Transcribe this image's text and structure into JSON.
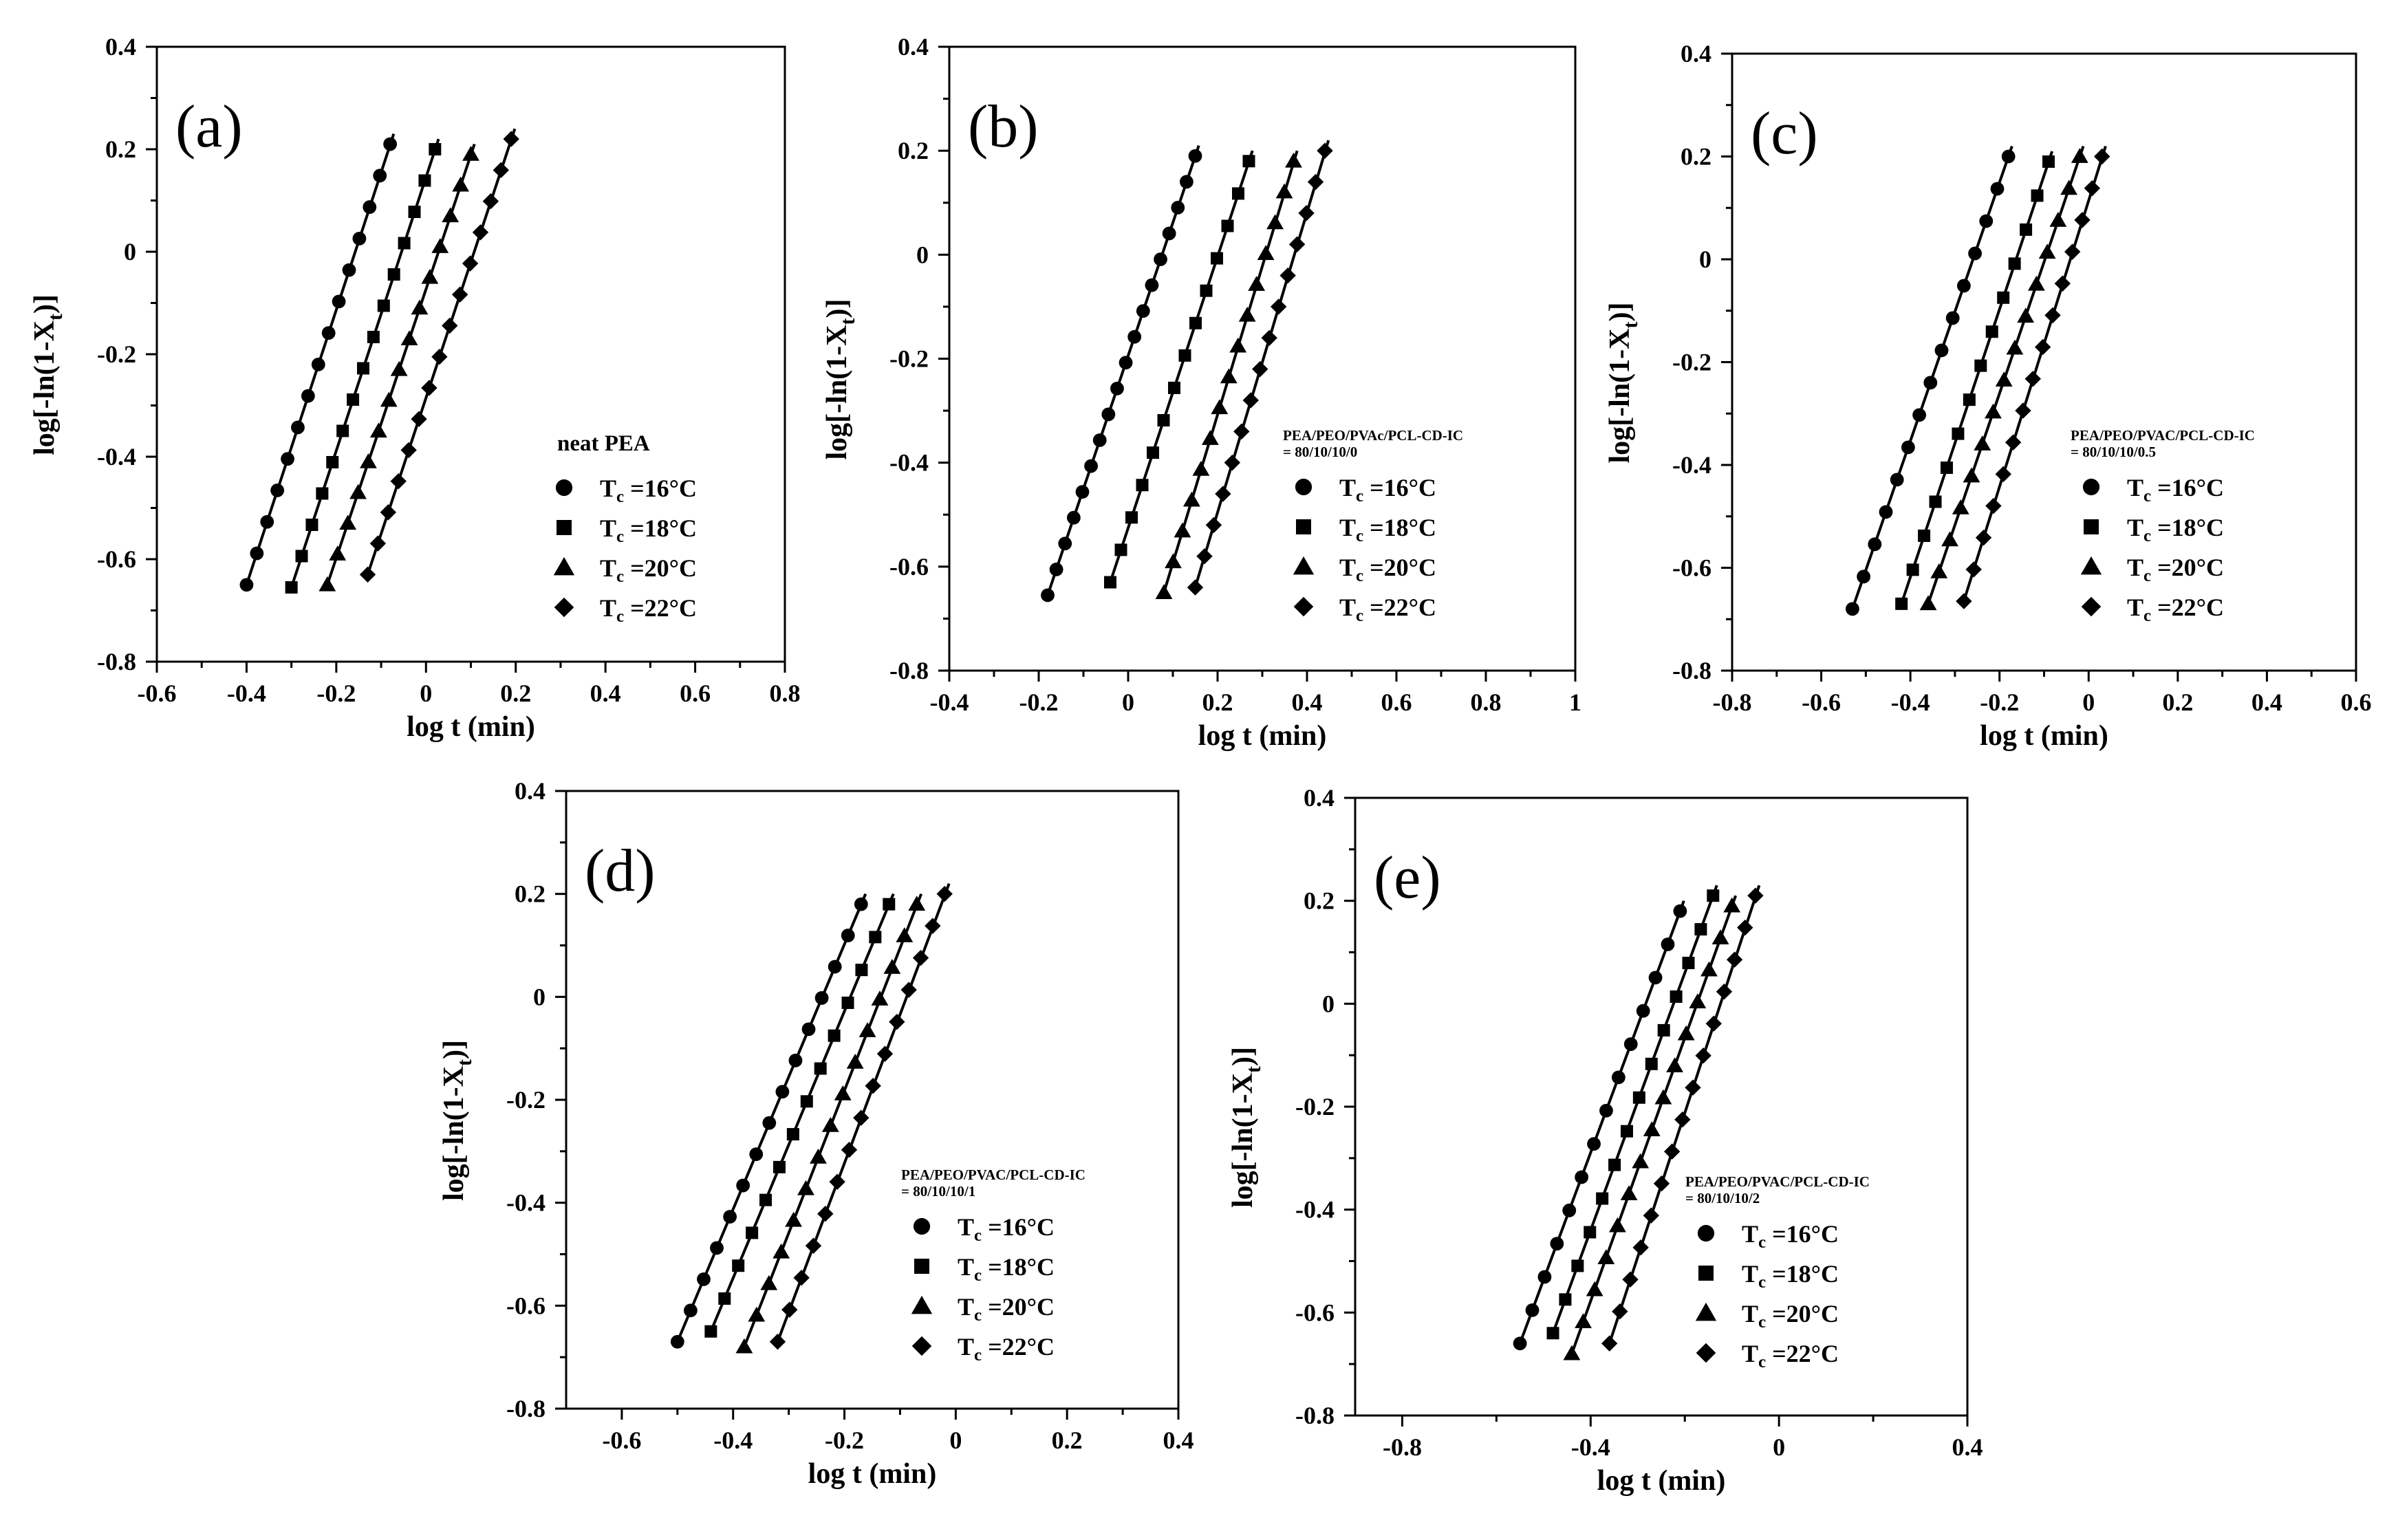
{
  "chart_data": [
    {
      "type": "line",
      "panel_label": "(a)",
      "xlabel": "log t (min)",
      "ylabel": "log[-ln(1-X",
      "ylabel_sub": "t",
      "ylabel_tail": ")]",
      "xlim": [
        -0.6,
        0.8
      ],
      "ylim": [
        -0.8,
        0.4
      ],
      "xticks": [
        -0.6,
        -0.4,
        -0.2,
        0,
        0.2,
        0.4,
        0.6,
        0.8
      ],
      "xtick_labels": [
        "-0.6",
        "-0.4",
        "-0.2",
        "0",
        "0.2",
        "0.4",
        "0.6",
        "0.8"
      ],
      "yticks": [
        -0.8,
        -0.6,
        -0.4,
        -0.2,
        0,
        0.2,
        0.4
      ],
      "ytick_labels": [
        "-0.8",
        "-0.6",
        "-0.4",
        "-0.2",
        "0",
        "0.2",
        "0.4"
      ],
      "legend_title": [
        "neat PEA"
      ],
      "legend_title_style": "big",
      "series": [
        {
          "name": "T",
          "sub": "c",
          "tail": " =16°C",
          "marker": "circle",
          "x_start": -0.4,
          "x_end": -0.08,
          "y_start": -0.65,
          "y_end": 0.21,
          "n": 15
        },
        {
          "name": "T",
          "sub": "c",
          "tail": " =18°C",
          "marker": "square",
          "x_start": -0.3,
          "x_end": 0.02,
          "y_start": -0.655,
          "y_end": 0.2,
          "n": 15
        },
        {
          "name": "T",
          "sub": "c",
          "tail": " =20°C",
          "marker": "triangle",
          "x_start": -0.22,
          "x_end": 0.1,
          "y_start": -0.65,
          "y_end": 0.19,
          "n": 15
        },
        {
          "name": "T",
          "sub": "c",
          "tail": " =22°C",
          "marker": "diamond",
          "x_start": -0.13,
          "x_end": 0.19,
          "y_start": -0.63,
          "y_end": 0.22,
          "n": 15
        }
      ]
    },
    {
      "type": "line",
      "panel_label": "(b)",
      "xlabel": "log t (min)",
      "ylabel": "log[-ln(1-X",
      "ylabel_sub": "t",
      "ylabel_tail": ")]",
      "xlim": [
        -0.4,
        1.0
      ],
      "ylim": [
        -0.8,
        0.4
      ],
      "xticks": [
        -0.4,
        -0.2,
        0,
        0.2,
        0.4,
        0.6,
        0.8,
        1.0
      ],
      "xtick_labels": [
        "-0.4",
        "-0.2",
        "0",
        "0.2",
        "0.4",
        "0.6",
        "0.8",
        "1"
      ],
      "yticks": [
        -0.8,
        -0.6,
        -0.4,
        -0.2,
        0,
        0.2,
        0.4
      ],
      "ytick_labels": [
        "-0.8",
        "-0.6",
        "-0.4",
        "-0.2",
        "0",
        "0.2",
        "0.4"
      ],
      "legend_title": [
        "PEA/PEO/PVAc/PCL-CD-IC",
        "= 80/10/10/0"
      ],
      "legend_title_style": "small",
      "series": [
        {
          "name": "T",
          "sub": "c",
          "tail": " =16°C",
          "marker": "circle",
          "x_start": -0.18,
          "x_end": 0.15,
          "y_start": -0.655,
          "y_end": 0.19,
          "n": 18
        },
        {
          "name": "T",
          "sub": "c",
          "tail": " =18°C",
          "marker": "square",
          "x_start": -0.04,
          "x_end": 0.27,
          "y_start": -0.63,
          "y_end": 0.18,
          "n": 14
        },
        {
          "name": "T",
          "sub": "c",
          "tail": " =20°C",
          "marker": "triangle",
          "x_start": 0.08,
          "x_end": 0.37,
          "y_start": -0.65,
          "y_end": 0.18,
          "n": 15
        },
        {
          "name": "T",
          "sub": "c",
          "tail": " =22°C",
          "marker": "diamond",
          "x_start": 0.15,
          "x_end": 0.44,
          "y_start": -0.64,
          "y_end": 0.2,
          "n": 15
        }
      ]
    },
    {
      "type": "line",
      "panel_label": "(c)",
      "xlabel": "log t (min)",
      "ylabel": "log[-ln(1-X",
      "ylabel_sub": "t",
      "ylabel_tail": ")]",
      "xlim": [
        -0.8,
        0.6
      ],
      "ylim": [
        -0.8,
        0.4
      ],
      "xticks": [
        -0.8,
        -0.6,
        -0.4,
        -0.2,
        0,
        0.2,
        0.4,
        0.6
      ],
      "xtick_labels": [
        "-0.8",
        "-0.6",
        "-0.4",
        "-0.2",
        "0",
        "0.2",
        "0.4",
        "0.6"
      ],
      "yticks": [
        -0.8,
        -0.6,
        -0.4,
        -0.2,
        0,
        0.2,
        0.4
      ],
      "ytick_labels": [
        "-0.8",
        "-0.6",
        "-0.4",
        "-0.2",
        "0",
        "0.2",
        "0.4"
      ],
      "legend_title": [
        "PEA/PEO/PVAC/PCL-CD-IC",
        "= 80/10/10/0.5"
      ],
      "legend_title_style": "small",
      "series": [
        {
          "name": "T",
          "sub": "c",
          "tail": " =16°C",
          "marker": "circle",
          "x_start": -0.53,
          "x_end": -0.18,
          "y_start": -0.68,
          "y_end": 0.2,
          "n": 15
        },
        {
          "name": "T",
          "sub": "c",
          "tail": " =18°C",
          "marker": "square",
          "x_start": -0.42,
          "x_end": -0.09,
          "y_start": -0.67,
          "y_end": 0.19,
          "n": 14
        },
        {
          "name": "T",
          "sub": "c",
          "tail": " =20°C",
          "marker": "triangle",
          "x_start": -0.36,
          "x_end": -0.02,
          "y_start": -0.67,
          "y_end": 0.2,
          "n": 15
        },
        {
          "name": "T",
          "sub": "c",
          "tail": " =22°C",
          "marker": "diamond",
          "x_start": -0.28,
          "x_end": 0.03,
          "y_start": -0.665,
          "y_end": 0.2,
          "n": 15
        }
      ]
    },
    {
      "type": "line",
      "panel_label": "(d)",
      "xlabel": "log t (min)",
      "ylabel": "log[-ln(1-X",
      "ylabel_sub": "t",
      "ylabel_tail": ")]",
      "xlim": [
        -0.7,
        0.4
      ],
      "ylim": [
        -0.8,
        0.4
      ],
      "xticks": [
        -0.6,
        -0.4,
        -0.2,
        0,
        0.2,
        0.4
      ],
      "xtick_labels": [
        "-0.6",
        "-0.4",
        "-0.2",
        "0",
        "0.2",
        "0.4"
      ],
      "yticks": [
        -0.8,
        -0.6,
        -0.4,
        -0.2,
        0,
        0.2,
        0.4
      ],
      "ytick_labels": [
        "-0.8",
        "-0.6",
        "-0.4",
        "-0.2",
        "0",
        "0.2",
        "0.4"
      ],
      "legend_title": [
        "PEA/PEO/PVAC/PCL-CD-IC",
        "= 80/10/10/1"
      ],
      "legend_title_style": "small",
      "series": [
        {
          "name": "T",
          "sub": "c",
          "tail": " =16°C",
          "marker": "circle",
          "x_start": -0.5,
          "x_end": -0.17,
          "y_start": -0.67,
          "y_end": 0.18,
          "n": 15
        },
        {
          "name": "T",
          "sub": "c",
          "tail": " =18°C",
          "marker": "square",
          "x_start": -0.44,
          "x_end": -0.12,
          "y_start": -0.65,
          "y_end": 0.18,
          "n": 14
        },
        {
          "name": "T",
          "sub": "c",
          "tail": " =20°C",
          "marker": "triangle",
          "x_start": -0.38,
          "x_end": -0.07,
          "y_start": -0.68,
          "y_end": 0.18,
          "n": 15
        },
        {
          "name": "T",
          "sub": "c",
          "tail": " =22°C",
          "marker": "diamond",
          "x_start": -0.32,
          "x_end": -0.02,
          "y_start": -0.67,
          "y_end": 0.2,
          "n": 15
        }
      ]
    },
    {
      "type": "line",
      "panel_label": "(e)",
      "xlabel": "log t (min)",
      "ylabel": "log[-ln(1-X",
      "ylabel_sub": "t",
      "ylabel_tail": ")]",
      "xlim": [
        -0.9,
        0.4
      ],
      "ylim": [
        -0.8,
        0.4
      ],
      "xticks": [
        -0.8,
        -0.4,
        0,
        0.4
      ],
      "xtick_labels": [
        "-0.8",
        "-0.4",
        "0",
        "0.4"
      ],
      "yticks": [
        -0.8,
        -0.6,
        -0.4,
        -0.2,
        0,
        0.2,
        0.4
      ],
      "ytick_labels": [
        "-0.8",
        "-0.6",
        "-0.4",
        "-0.2",
        "0",
        "0.2",
        "0.4"
      ],
      "legend_title": [
        "PEA/PEO/PVAC/PCL-CD-IC",
        "= 80/10/10/2"
      ],
      "legend_title_style": "small",
      "series": [
        {
          "name": "T",
          "sub": "c",
          "tail": " =16°C",
          "marker": "circle",
          "x_start": -0.55,
          "x_end": -0.21,
          "y_start": -0.66,
          "y_end": 0.18,
          "n": 14
        },
        {
          "name": "T",
          "sub": "c",
          "tail": " =18°C",
          "marker": "square",
          "x_start": -0.48,
          "x_end": -0.14,
          "y_start": -0.64,
          "y_end": 0.21,
          "n": 14
        },
        {
          "name": "T",
          "sub": "c",
          "tail": " =20°C",
          "marker": "triangle",
          "x_start": -0.44,
          "x_end": -0.1,
          "y_start": -0.68,
          "y_end": 0.19,
          "n": 15
        },
        {
          "name": "T",
          "sub": "c",
          "tail": " =22°C",
          "marker": "diamond",
          "x_start": -0.36,
          "x_end": -0.05,
          "y_start": -0.66,
          "y_end": 0.21,
          "n": 15
        }
      ]
    }
  ]
}
